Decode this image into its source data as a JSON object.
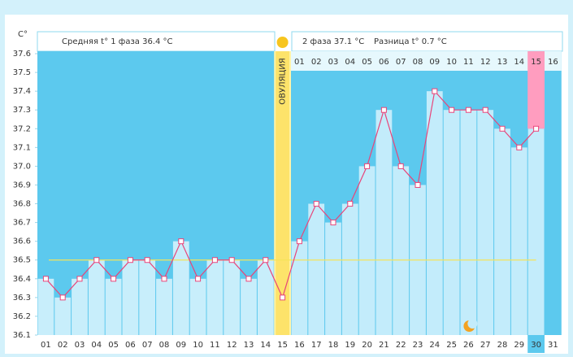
{
  "chart_data": {
    "type": "line",
    "y_label": "C°",
    "phase1_text": "Средняя t° 1 фаза 36.4 °C",
    "phase2_text": "2 фаза 37.1 °C",
    "diff_text": "Разница t° 0.7 °C",
    "ovulation_label": "ОВУЛЯЦИЯ",
    "ovulation_category": "15",
    "today_category": "30",
    "categories": [
      "01",
      "02",
      "03",
      "04",
      "05",
      "06",
      "07",
      "08",
      "09",
      "10",
      "11",
      "12",
      "13",
      "14",
      "15",
      "16",
      "17",
      "18",
      "19",
      "20",
      "21",
      "22",
      "23",
      "24",
      "25",
      "26",
      "27",
      "28",
      "29",
      "30",
      "31"
    ],
    "phase2_start": "16",
    "phase2_days": [
      "01",
      "02",
      "03",
      "04",
      "05",
      "06",
      "07",
      "08",
      "09",
      "10",
      "11",
      "12",
      "13",
      "14",
      "15",
      "16"
    ],
    "values": [
      36.4,
      36.3,
      36.4,
      36.5,
      36.4,
      36.5,
      36.5,
      36.4,
      36.6,
      36.4,
      36.5,
      36.5,
      36.4,
      36.5,
      36.3,
      36.6,
      36.8,
      36.7,
      36.8,
      37.0,
      37.3,
      37.0,
      36.9,
      37.4,
      37.3,
      37.3,
      37.3,
      37.2,
      37.1,
      37.2,
      null
    ],
    "coverline": 36.5,
    "color": "#e8457a",
    "ylim": [
      36.1,
      37.6
    ],
    "yticks": [
      36.1,
      36.2,
      36.3,
      36.4,
      36.5,
      36.6,
      36.7,
      36.8,
      36.9,
      {
        "value": 37,
        "label": "37.0"
      },
      37.1,
      37.2,
      37.3,
      37.4,
      37.5,
      37.6
    ]
  }
}
